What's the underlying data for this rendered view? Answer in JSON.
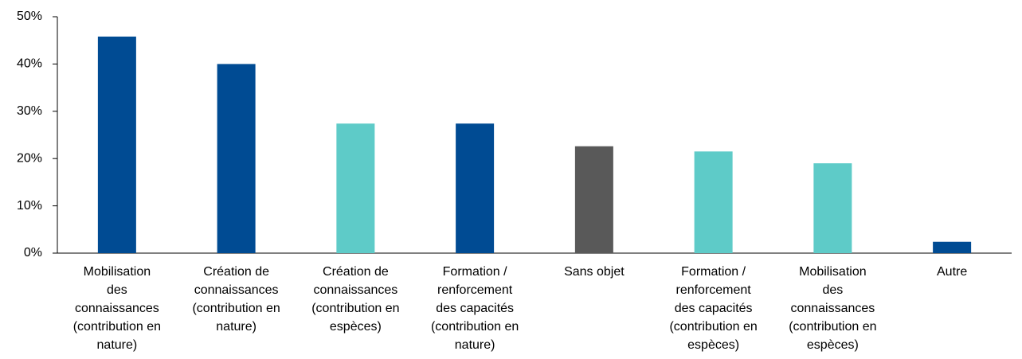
{
  "chart_data": {
    "type": "bar",
    "categories": [
      "Mobilisation\ndes\nconnaissances\n(contribution en\nnature)",
      "Création de\nconnaissances\n(contribution en\nnature)",
      "Création de\nconnaissances\n(contribution en\nespèces)",
      "Formation /\nrenforcement\ndes capacités\n(contribution en\nnature)",
      "Sans objet",
      "Formation /\nrenforcement\ndes capacités\n(contribution en\nespèces)",
      "Mobilisation\ndes\nconnaissances\n(contribution en\nespèces)",
      "Autre"
    ],
    "values": [
      45.8,
      40,
      27.4,
      27.4,
      22.6,
      21.5,
      19,
      2.4
    ],
    "colors": [
      "#004b93",
      "#004b93",
      "#5ecbc8",
      "#004b93",
      "#595959",
      "#5ecbc8",
      "#5ecbc8",
      "#004b93"
    ],
    "ylim": [
      0,
      50
    ],
    "yticks": [
      {
        "value": 0,
        "label": "0%"
      },
      {
        "value": 10,
        "label": "10%"
      },
      {
        "value": 20,
        "label": "20%"
      },
      {
        "value": 30,
        "label": "30%"
      },
      {
        "value": 40,
        "label": "40%"
      },
      {
        "value": 50,
        "label": "50%"
      }
    ],
    "grid": false
  }
}
